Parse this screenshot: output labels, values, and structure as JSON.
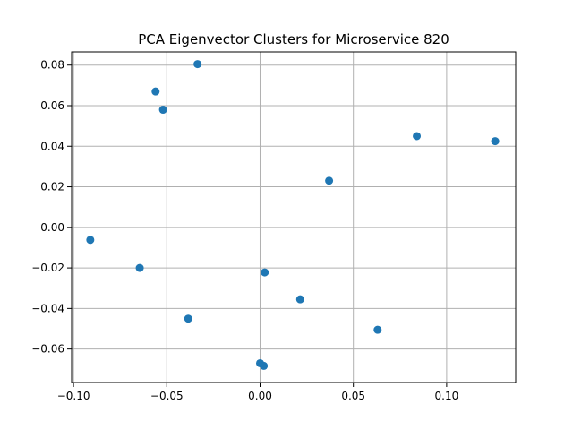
{
  "chart_data": {
    "type": "scatter",
    "title": "PCA Eigenvector Clusters for Microservice 820",
    "xlabel": "",
    "ylabel": "",
    "xlim": [
      -0.101,
      0.137
    ],
    "ylim": [
      -0.0765,
      0.0865
    ],
    "grid": true,
    "x_ticks": [
      {
        "value": -0.1,
        "label": "−0.10"
      },
      {
        "value": -0.05,
        "label": "−0.05"
      },
      {
        "value": 0.0,
        "label": "0.00"
      },
      {
        "value": 0.05,
        "label": "0.05"
      },
      {
        "value": 0.1,
        "label": "0.10"
      }
    ],
    "y_ticks": [
      {
        "value": -0.06,
        "label": "−0.06"
      },
      {
        "value": -0.04,
        "label": "−0.04"
      },
      {
        "value": -0.02,
        "label": "−0.02"
      },
      {
        "value": 0.0,
        "label": "0.00"
      },
      {
        "value": 0.02,
        "label": "0.02"
      },
      {
        "value": 0.04,
        "label": "0.04"
      },
      {
        "value": 0.06,
        "label": "0.06"
      },
      {
        "value": 0.08,
        "label": "0.08"
      }
    ],
    "series": [
      {
        "color": "#1f77b4",
        "points": [
          {
            "x": -0.0335,
            "y": 0.0805
          },
          {
            "x": -0.056,
            "y": 0.067
          },
          {
            "x": -0.052,
            "y": 0.058
          },
          {
            "x": 0.084,
            "y": 0.045
          },
          {
            "x": 0.126,
            "y": 0.0425
          },
          {
            "x": 0.037,
            "y": 0.023
          },
          {
            "x": -0.091,
            "y": -0.0062
          },
          {
            "x": -0.0645,
            "y": -0.02
          },
          {
            "x": 0.0025,
            "y": -0.0222
          },
          {
            "x": 0.0215,
            "y": -0.0355
          },
          {
            "x": -0.0385,
            "y": -0.045
          },
          {
            "x": 0.063,
            "y": -0.0505
          },
          {
            "x": 0.0,
            "y": -0.067
          },
          {
            "x": 0.002,
            "y": -0.0683
          }
        ]
      }
    ]
  }
}
